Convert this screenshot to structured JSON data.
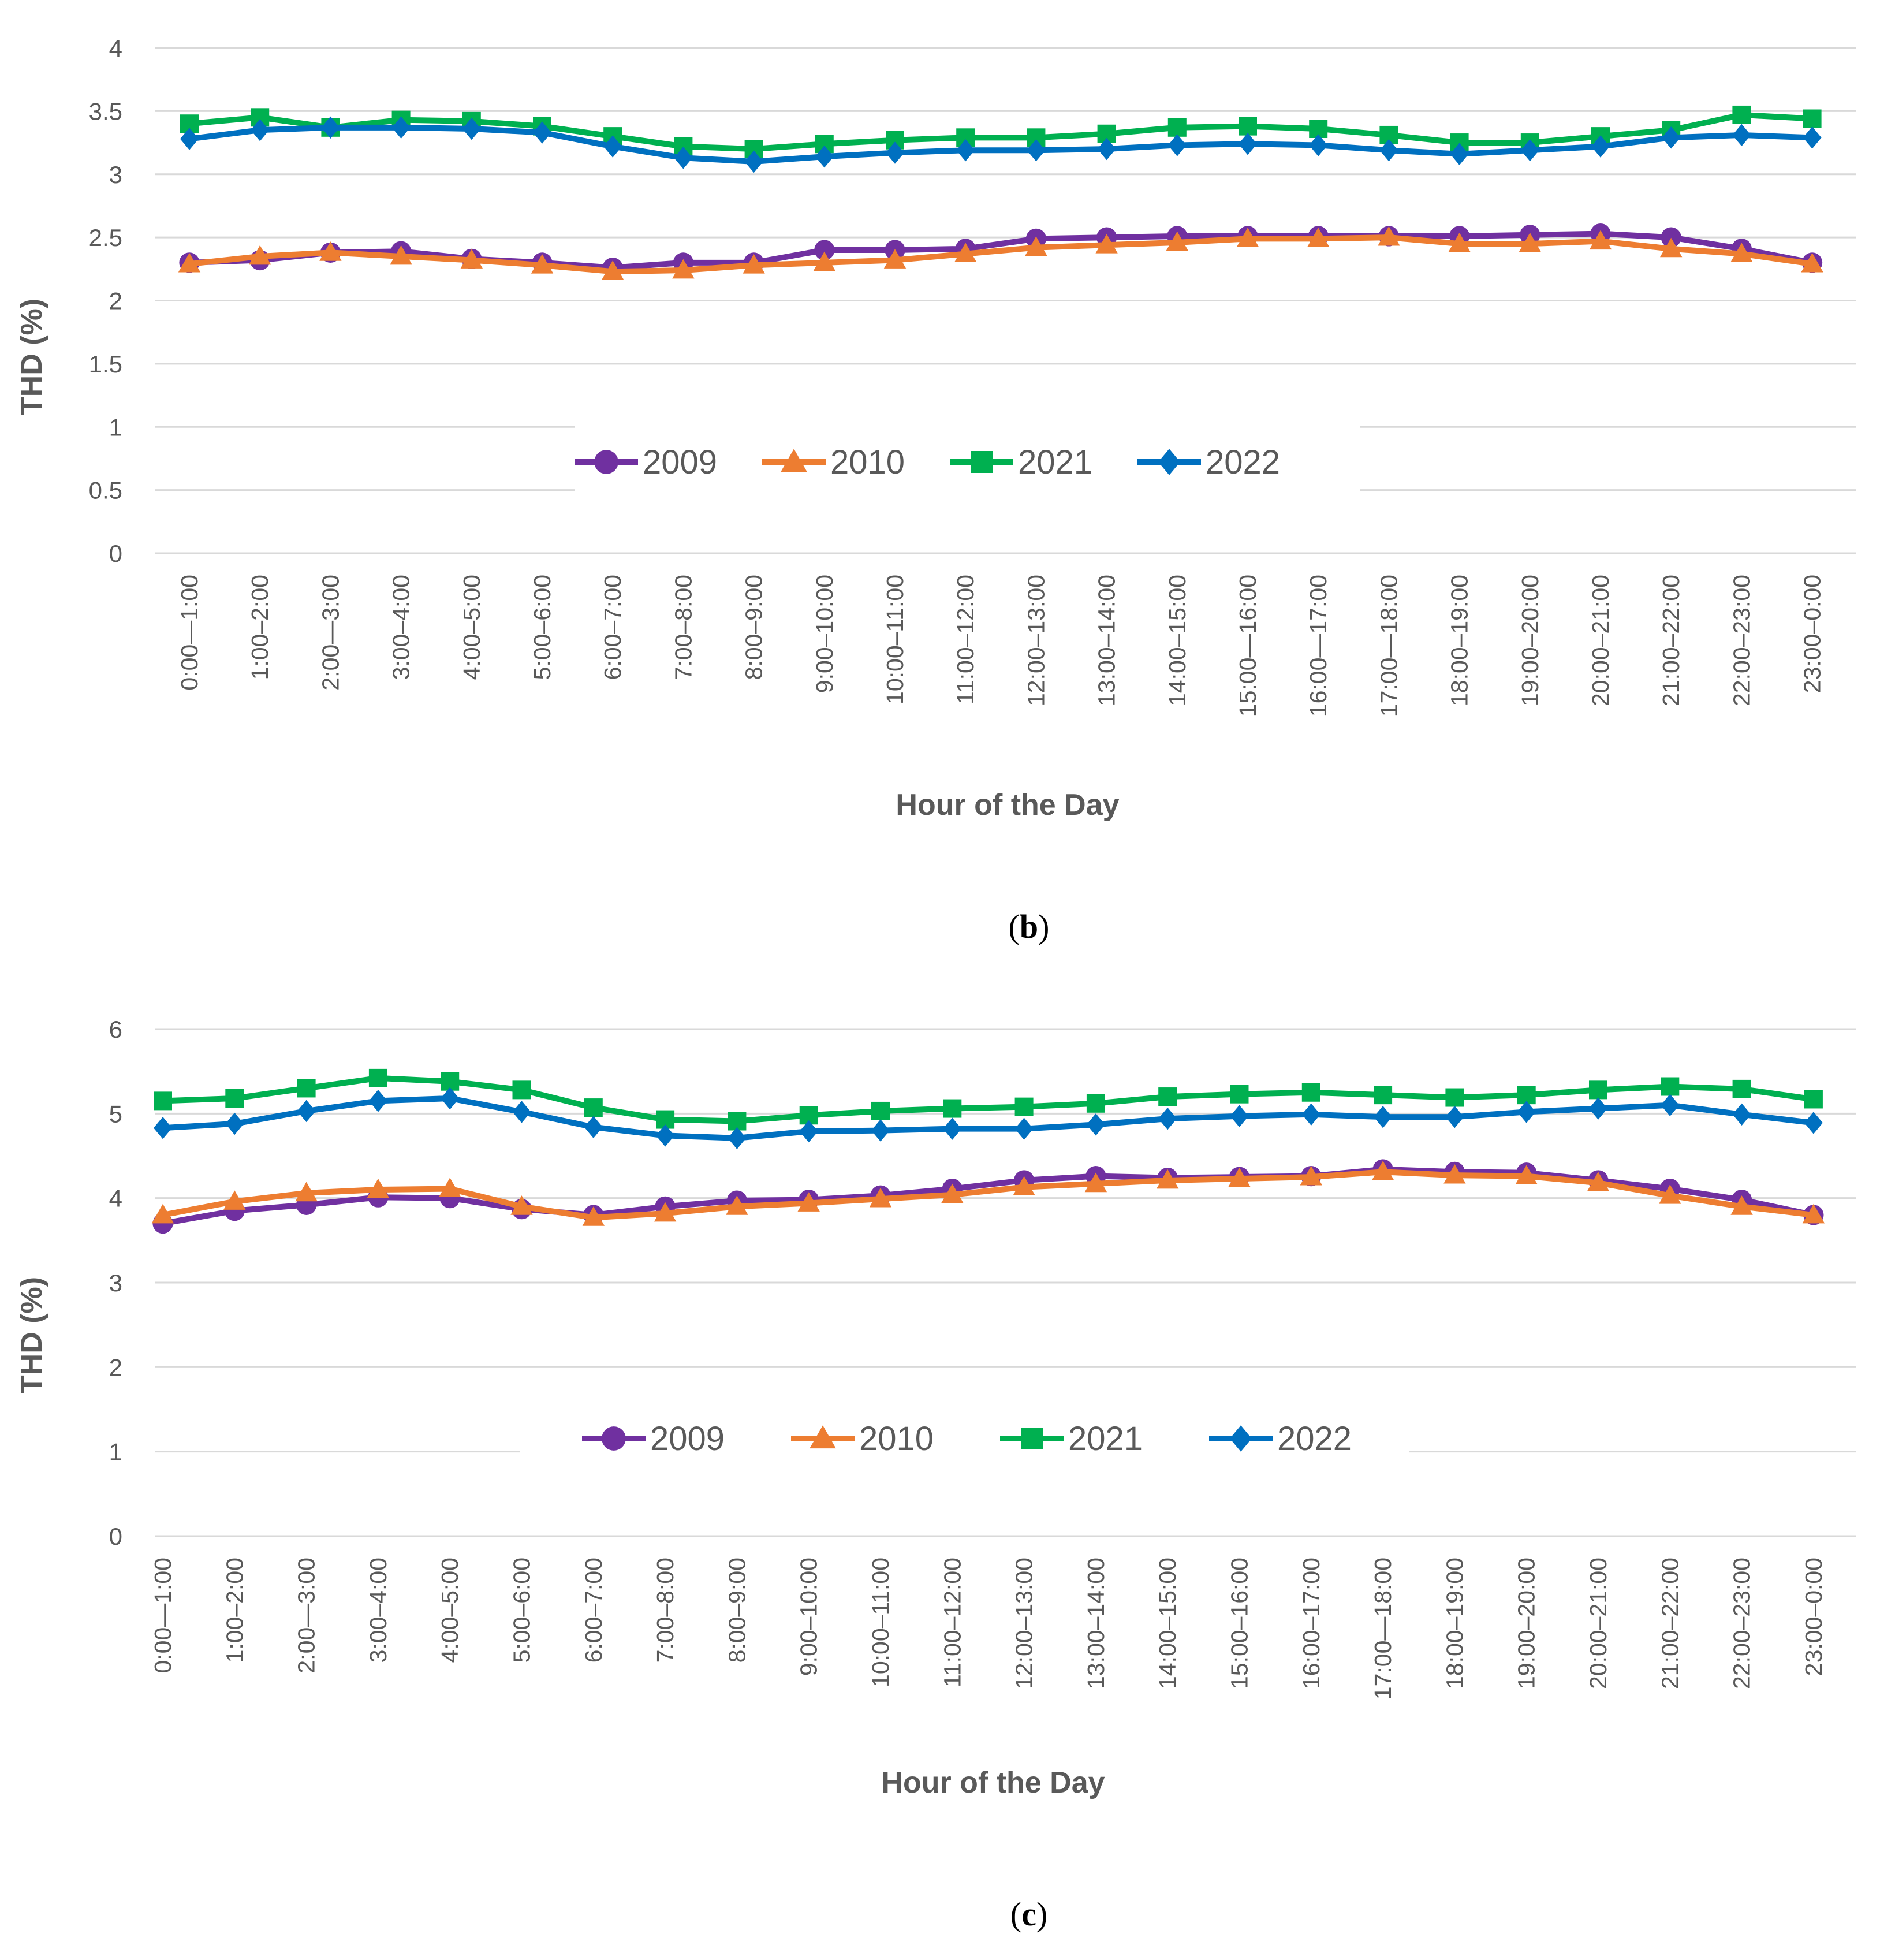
{
  "colors": {
    "2009": "#7030a0",
    "2010": "#ed7d31",
    "2021": "#00b050",
    "2022": "#0070c0",
    "grid": "#d9d9d9",
    "text": "#595959"
  },
  "chart_data": [
    {
      "type": "line",
      "panel_label": "b",
      "xlabel": "Hour of the Day",
      "ylabel": "THD (%)",
      "ylim": [
        0,
        4
      ],
      "yticks": [
        "0",
        "0.5",
        "1",
        "1.5",
        "2",
        "2.5",
        "3",
        "3.5",
        "4"
      ],
      "legend_position": "center",
      "categories": [
        "0:00—1:00",
        "1:00–2:00",
        "2:00—3:00",
        "3:00–4:00",
        "4:00–5:00",
        "5:00–6:00",
        "6:00–7:00",
        "7:00–8:00",
        "8:00–9:00",
        "9:00–10:00",
        "10:00–11:00",
        "11:00–12:00",
        "12:00–13:00",
        "13:00–14:00",
        "14:00–15:00",
        "15:00—16:00",
        "16:00—17:00",
        "17:00—18:00",
        "18:00–19:00",
        "19:00–20:00",
        "20:00–21:00",
        "21:00–22:00",
        "22:00–23:00",
        "23:00–0:00"
      ],
      "series": [
        {
          "name": "2009",
          "marker": "circle",
          "values": [
            2.3,
            2.32,
            2.38,
            2.39,
            2.33,
            2.3,
            2.26,
            2.3,
            2.3,
            2.4,
            2.4,
            2.41,
            2.49,
            2.5,
            2.51,
            2.51,
            2.51,
            2.51,
            2.51,
            2.52,
            2.53,
            2.5,
            2.41,
            2.3
          ]
        },
        {
          "name": "2010",
          "marker": "triangle",
          "values": [
            2.29,
            2.35,
            2.38,
            2.35,
            2.32,
            2.28,
            2.23,
            2.24,
            2.28,
            2.3,
            2.32,
            2.37,
            2.42,
            2.44,
            2.46,
            2.49,
            2.49,
            2.5,
            2.45,
            2.45,
            2.47,
            2.41,
            2.37,
            2.29
          ]
        },
        {
          "name": "2021",
          "marker": "square",
          "values": [
            3.4,
            3.45,
            3.37,
            3.43,
            3.42,
            3.38,
            3.3,
            3.22,
            3.2,
            3.24,
            3.27,
            3.29,
            3.29,
            3.32,
            3.37,
            3.38,
            3.36,
            3.31,
            3.25,
            3.25,
            3.3,
            3.35,
            3.47,
            3.44
          ]
        },
        {
          "name": "2022",
          "marker": "diamond",
          "values": [
            3.28,
            3.35,
            3.37,
            3.37,
            3.36,
            3.33,
            3.22,
            3.13,
            3.1,
            3.14,
            3.17,
            3.19,
            3.19,
            3.2,
            3.23,
            3.24,
            3.23,
            3.19,
            3.16,
            3.19,
            3.22,
            3.29,
            3.31,
            3.29
          ]
        }
      ]
    },
    {
      "type": "line",
      "panel_label": "c",
      "xlabel": "Hour of the Day",
      "ylabel": "THD (%)",
      "ylim": [
        0,
        6
      ],
      "yticks": [
        "0",
        "1",
        "2",
        "3",
        "4",
        "5",
        "6"
      ],
      "legend_position": "center",
      "categories": [
        "0:00—1:00",
        "1:00–2:00",
        "2:00—3:00",
        "3:00–4:00",
        "4:00–5:00",
        "5:00–6:00",
        "6:00–7:00",
        "7:00–8:00",
        "8:00–9:00",
        "9:00–10:00",
        "10:00–11:00",
        "11:00–12:00",
        "12:00–13:00",
        "13:00–14:00",
        "14:00–15:00",
        "15:00–16:00",
        "16:00–17:00",
        "17:00—18:00",
        "18:00–19:00",
        "19:00–20:00",
        "20:00–21:00",
        "21:00–22:00",
        "22:00–23:00",
        "23:00–0:00"
      ],
      "series": [
        {
          "name": "2009",
          "marker": "circle",
          "values": [
            3.7,
            3.85,
            3.92,
            4.01,
            4.0,
            3.87,
            3.8,
            3.9,
            3.97,
            3.98,
            4.03,
            4.11,
            4.21,
            4.26,
            4.24,
            4.25,
            4.26,
            4.34,
            4.31,
            4.3,
            4.21,
            4.11,
            3.98,
            3.8
          ]
        },
        {
          "name": "2010",
          "marker": "triangle",
          "values": [
            3.8,
            3.96,
            4.06,
            4.1,
            4.11,
            3.9,
            3.77,
            3.82,
            3.9,
            3.94,
            3.99,
            4.04,
            4.13,
            4.17,
            4.21,
            4.23,
            4.25,
            4.31,
            4.27,
            4.26,
            4.18,
            4.03,
            3.9,
            3.8
          ]
        },
        {
          "name": "2021",
          "marker": "square",
          "values": [
            5.15,
            5.18,
            5.3,
            5.42,
            5.38,
            5.28,
            5.07,
            4.93,
            4.91,
            4.98,
            5.03,
            5.06,
            5.08,
            5.12,
            5.2,
            5.23,
            5.25,
            5.22,
            5.19,
            5.22,
            5.28,
            5.32,
            5.29,
            5.17
          ]
        },
        {
          "name": "2022",
          "marker": "diamond",
          "values": [
            4.83,
            4.88,
            5.03,
            5.15,
            5.18,
            5.02,
            4.84,
            4.74,
            4.71,
            4.79,
            4.8,
            4.82,
            4.82,
            4.87,
            4.94,
            4.97,
            4.99,
            4.96,
            4.96,
            5.02,
            5.06,
            5.1,
            4.99,
            4.89
          ]
        }
      ]
    }
  ]
}
